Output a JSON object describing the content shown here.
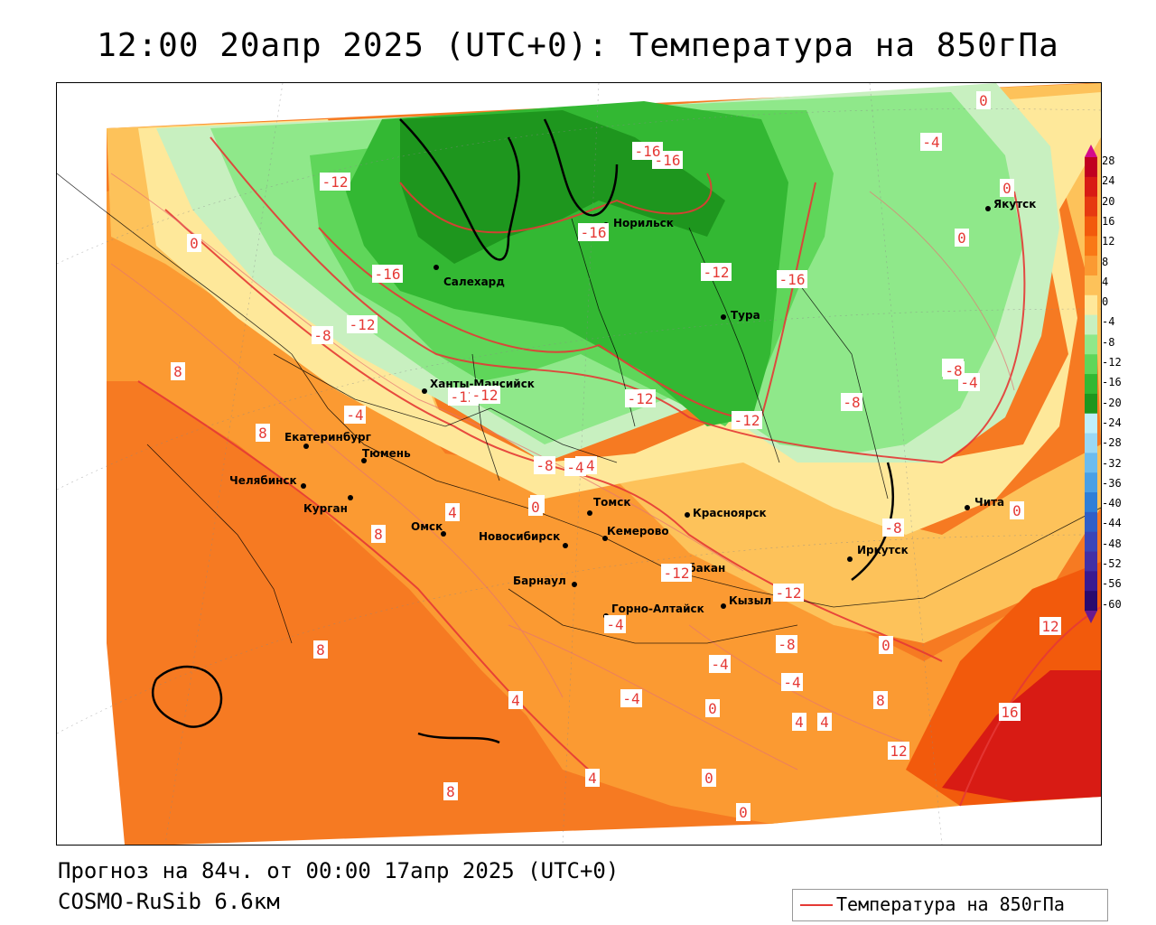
{
  "title": "12:00 20апр 2025 (UTC+0): Температура на 850гПа",
  "footer": {
    "forecast": "Прогноз на 84ч. от 00:00 17апр 2025 (UTC+0)",
    "model": "COSMO-RuSib 6.6км"
  },
  "legend": {
    "label": "Температура на 850гПа",
    "line_color": "#e53935"
  },
  "colorbar": {
    "ticks": [
      "28",
      "24",
      "20",
      "16",
      "12",
      "8",
      "4",
      "0",
      "-4",
      "-8",
      "-12",
      "-16",
      "-20",
      "-24",
      "-28",
      "-32",
      "-36",
      "-40",
      "-44",
      "-48",
      "-52",
      "-56",
      "-60"
    ],
    "colors": [
      "#c00020",
      "#d81b14",
      "#e63a10",
      "#f25a0c",
      "#f97816",
      "#fb9a32",
      "#fdc25a",
      "#fee89a",
      "#c8f0c0",
      "#8fe88a",
      "#5fd65a",
      "#33b833",
      "#1e961e",
      "#bfeffb",
      "#9ad8f5",
      "#6cbcef",
      "#4aa0e6",
      "#2f7fd8",
      "#2f5fc8",
      "#3a46b8",
      "#4230a6",
      "#3a1a90",
      "#2a0a6e"
    ]
  },
  "cities": [
    {
      "name": "Салехард"
    },
    {
      "name": "Норильск"
    },
    {
      "name": "Якутск"
    },
    {
      "name": "Тура"
    },
    {
      "name": "Ханты-Мансийск"
    },
    {
      "name": "Екатеринбург"
    },
    {
      "name": "Тюмень"
    },
    {
      "name": "Челябинск"
    },
    {
      "name": "Курган"
    },
    {
      "name": "Омск"
    },
    {
      "name": "Новосибирск"
    },
    {
      "name": "Томск"
    },
    {
      "name": "Красноярск"
    },
    {
      "name": "Кемерово"
    },
    {
      "name": "Барнаул"
    },
    {
      "name": "Абакан"
    },
    {
      "name": "Иркутск"
    },
    {
      "name": "Чита"
    },
    {
      "name": "Кызыл"
    },
    {
      "name": "Горно-Алтайск"
    }
  ],
  "contour_labels": [
    "-12",
    "-16",
    "-16",
    "-16",
    "-16",
    "0",
    "-12",
    "-12",
    "-16",
    "-12",
    "-8",
    "0",
    "-4",
    "0",
    "0",
    "-12",
    "-12",
    "-12",
    "-8",
    "-4",
    "-8",
    "-12",
    "-4",
    "-8",
    "-4",
    "8",
    "8",
    "8",
    "4",
    "0",
    "8",
    "-8",
    "-8",
    "-12",
    "-4",
    "0",
    "-4",
    "12",
    "8",
    "-4",
    "-4",
    "-8",
    "0",
    "-4",
    "4",
    "4",
    "0",
    "0",
    "4",
    "16",
    "12",
    "8",
    "4",
    "0",
    "0"
  ]
}
